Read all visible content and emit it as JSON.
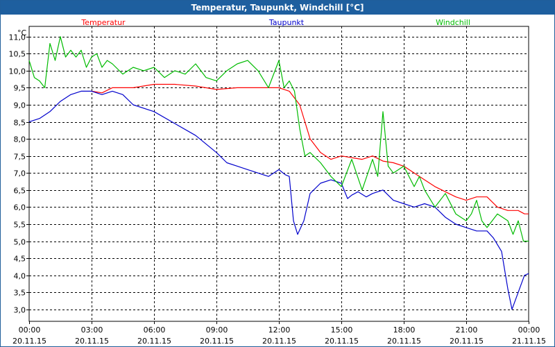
{
  "window": {
    "title": "Temperatur, Taupunkt, Windchill [°C]"
  },
  "chart_data": {
    "type": "line",
    "title": "Temperatur, Taupunkt, Windchill [°C]",
    "ylabel": "°C",
    "ylim": [
      2.65,
      11.3
    ],
    "grid": true,
    "y_ticks": [
      "3,0",
      "3,5",
      "4,0",
      "4,5",
      "5,0",
      "5,5",
      "6,0",
      "6,5",
      "7,0",
      "7,5",
      "8,0",
      "8,5",
      "9,0",
      "9,5",
      "10,0",
      "10,5",
      "11,0"
    ],
    "x_ticks": [
      {
        "time": "00:00",
        "date": "20.11.15"
      },
      {
        "time": "03:00",
        "date": "20.11.15"
      },
      {
        "time": "06:00",
        "date": "20.11.15"
      },
      {
        "time": "09:00",
        "date": "20.11.15"
      },
      {
        "time": "12:00",
        "date": "20.11.15"
      },
      {
        "time": "15:00",
        "date": "20.11.15"
      },
      {
        "time": "18:00",
        "date": "20.11.15"
      },
      {
        "time": "21:00",
        "date": "20.11.15"
      },
      {
        "time": "00:00",
        "date": "21.11.15"
      }
    ],
    "xlim_hours": [
      0,
      24
    ],
    "series": [
      {
        "name": "Temperatur",
        "color": "#ff0000",
        "x": [
          3.0,
          3.5,
          4.0,
          4.5,
          5.0,
          6.0,
          7.0,
          8.0,
          9.0,
          10.0,
          11.0,
          12.0,
          12.5,
          13.0,
          13.5,
          14.0,
          14.5,
          15.0,
          15.5,
          16.0,
          16.5,
          17.0,
          17.5,
          18.0,
          18.5,
          19.0,
          19.5,
          20.0,
          20.5,
          21.0,
          21.5,
          22.0,
          22.5,
          23.0,
          23.5,
          23.8,
          24.0
        ],
        "values": [
          9.4,
          9.35,
          9.5,
          9.5,
          9.5,
          9.6,
          9.6,
          9.55,
          9.45,
          9.5,
          9.5,
          9.5,
          9.4,
          9.0,
          8.0,
          7.6,
          7.4,
          7.5,
          7.45,
          7.4,
          7.5,
          7.35,
          7.3,
          7.2,
          7.0,
          6.8,
          6.6,
          6.45,
          6.3,
          6.2,
          6.3,
          6.3,
          6.0,
          5.9,
          5.9,
          5.8,
          5.8
        ]
      },
      {
        "name": "Taupunkt",
        "color": "#0000cc",
        "x": [
          0.0,
          0.5,
          1.0,
          1.5,
          2.0,
          2.5,
          3.0,
          3.5,
          4.0,
          4.5,
          5.0,
          6.0,
          7.0,
          8.0,
          9.0,
          9.5,
          10.0,
          10.5,
          11.0,
          11.5,
          12.0,
          12.3,
          12.5,
          12.7,
          12.9,
          13.2,
          13.5,
          14.0,
          14.5,
          15.0,
          15.3,
          15.5,
          15.8,
          16.2,
          16.5,
          17.0,
          17.5,
          18.0,
          18.5,
          19.0,
          19.5,
          20.0,
          20.5,
          21.0,
          21.5,
          22.0,
          22.3,
          22.7,
          23.0,
          23.2,
          23.5,
          23.8,
          24.0
        ],
        "values": [
          8.5,
          8.6,
          8.8,
          9.1,
          9.3,
          9.4,
          9.4,
          9.3,
          9.4,
          9.3,
          9.0,
          8.8,
          8.45,
          8.1,
          7.6,
          7.3,
          7.2,
          7.1,
          7.0,
          6.9,
          7.1,
          6.95,
          6.9,
          5.6,
          5.2,
          5.6,
          6.4,
          6.7,
          6.8,
          6.7,
          6.25,
          6.35,
          6.45,
          6.3,
          6.4,
          6.5,
          6.2,
          6.1,
          6.0,
          6.1,
          6.0,
          5.7,
          5.5,
          5.4,
          5.3,
          5.3,
          5.1,
          4.7,
          3.6,
          3.0,
          3.5,
          4.0,
          4.05
        ]
      },
      {
        "name": "Windchill",
        "color": "#00bb00",
        "x": [
          0.0,
          0.25,
          0.5,
          0.75,
          1.0,
          1.25,
          1.5,
          1.75,
          2.0,
          2.25,
          2.5,
          2.75,
          3.0,
          3.25,
          3.5,
          3.75,
          4.0,
          4.5,
          5.0,
          5.5,
          6.0,
          6.5,
          7.0,
          7.5,
          8.0,
          8.5,
          9.0,
          9.5,
          10.0,
          10.5,
          11.0,
          11.5,
          12.0,
          12.25,
          12.5,
          12.75,
          13.0,
          13.25,
          13.5,
          14.0,
          14.5,
          15.0,
          15.5,
          16.0,
          16.5,
          16.75,
          17.0,
          17.25,
          17.5,
          17.75,
          18.0,
          18.25,
          18.5,
          18.75,
          19.0,
          19.5,
          20.0,
          20.5,
          21.0,
          21.25,
          21.5,
          21.75,
          22.0,
          22.5,
          23.0,
          23.25,
          23.5,
          23.75,
          24.0
        ],
        "values": [
          10.3,
          9.8,
          9.7,
          9.5,
          10.8,
          10.3,
          11.0,
          10.4,
          10.6,
          10.4,
          10.6,
          10.1,
          10.4,
          10.5,
          10.1,
          10.3,
          10.2,
          9.9,
          10.1,
          10.0,
          10.1,
          9.8,
          10.0,
          9.9,
          10.2,
          9.8,
          9.7,
          10.0,
          10.2,
          10.3,
          10.0,
          9.5,
          10.3,
          9.5,
          9.7,
          9.4,
          8.3,
          7.5,
          7.6,
          7.3,
          6.9,
          6.6,
          7.4,
          6.5,
          7.4,
          6.9,
          8.8,
          7.2,
          7.0,
          7.1,
          7.2,
          6.9,
          6.6,
          6.9,
          6.5,
          6.0,
          6.4,
          5.8,
          5.6,
          5.8,
          6.2,
          5.6,
          5.4,
          5.8,
          5.6,
          5.2,
          5.6,
          5.0,
          5.0
        ]
      }
    ]
  }
}
